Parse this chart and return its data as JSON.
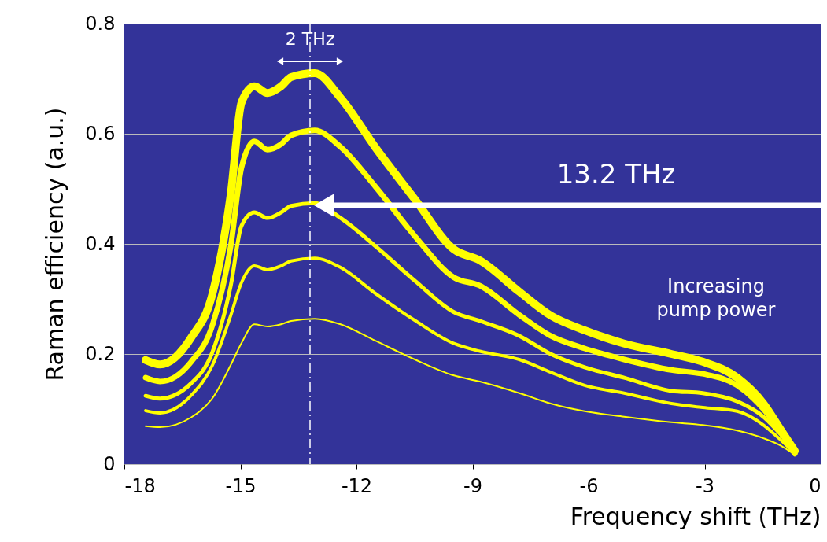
{
  "chart_data": {
    "type": "line",
    "xlabel": "Frequency shift (THz)",
    "ylabel": "Raman efficiency (a.u.)",
    "xlim": [
      -18,
      0
    ],
    "xticks": [
      -18,
      -15,
      -12,
      -9,
      -6,
      -3,
      0
    ],
    "ylim": [
      0,
      0.8
    ],
    "yticks": [
      0,
      0.2,
      0.4,
      0.6,
      0.8
    ],
    "grid": "y",
    "marker": "none",
    "line_style": "solid",
    "x": [
      -17.45,
      -17.08,
      -16.27,
      -15.72,
      -15.25,
      -14.97,
      -14.64,
      -14.3,
      -13.95,
      -13.69,
      -13.08,
      -12.41,
      -11.51,
      -10.49,
      -9.48,
      -8.81,
      -7.79,
      -6.98,
      -6.1,
      -5.08,
      -3.86,
      -3.05,
      -2.16,
      -1.48,
      -1.02,
      -0.67
    ],
    "series": [
      {
        "color": "#ffff00",
        "values": [
          0.069,
          0.067,
          0.085,
          0.12,
          0.18,
          0.22,
          0.254,
          0.25,
          0.254,
          0.26,
          0.264,
          0.254,
          0.224,
          0.19,
          0.161,
          0.15,
          0.129,
          0.11,
          0.096,
          0.086,
          0.076,
          0.071,
          0.061,
          0.047,
          0.033,
          0.017
        ]
      },
      {
        "color": "#ffff00",
        "values": [
          0.097,
          0.093,
          0.125,
          0.18,
          0.27,
          0.33,
          0.36,
          0.353,
          0.36,
          0.369,
          0.374,
          0.357,
          0.31,
          0.261,
          0.219,
          0.205,
          0.19,
          0.167,
          0.143,
          0.129,
          0.11,
          0.103,
          0.096,
          0.071,
          0.043,
          0.019
        ]
      },
      {
        "color": "#ffff00",
        "values": [
          0.124,
          0.119,
          0.147,
          0.204,
          0.324,
          0.433,
          0.457,
          0.447,
          0.457,
          0.469,
          0.474,
          0.447,
          0.396,
          0.333,
          0.276,
          0.26,
          0.233,
          0.2,
          0.176,
          0.157,
          0.133,
          0.129,
          0.114,
          0.086,
          0.053,
          0.024
        ]
      },
      {
        "color": "#ffff00",
        "values": [
          0.157,
          0.15,
          0.186,
          0.253,
          0.396,
          0.539,
          0.586,
          0.571,
          0.581,
          0.597,
          0.606,
          0.576,
          0.504,
          0.414,
          0.339,
          0.324,
          0.271,
          0.233,
          0.21,
          0.19,
          0.171,
          0.164,
          0.143,
          0.1,
          0.057,
          0.019
        ]
      },
      {
        "color": "#ffff00",
        "values": [
          0.189,
          0.181,
          0.23,
          0.31,
          0.49,
          0.657,
          0.686,
          0.674,
          0.686,
          0.703,
          0.71,
          0.665,
          0.575,
          0.481,
          0.39,
          0.37,
          0.313,
          0.27,
          0.243,
          0.219,
          0.2,
          0.186,
          0.157,
          0.11,
          0.061,
          0.024
        ]
      }
    ],
    "ref_lines": [
      {
        "axis": "x",
        "value": -13.2,
        "color": "#ffffff",
        "line_style": "dashed"
      }
    ],
    "annotations": [
      "2 THz",
      "13.2 THz",
      "Increasing pump power"
    ]
  }
}
